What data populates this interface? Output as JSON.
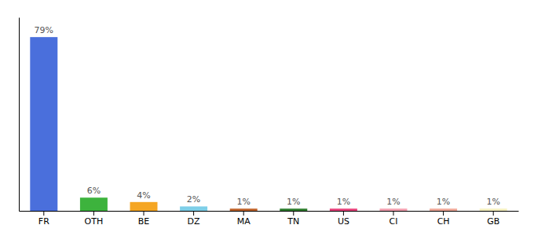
{
  "chart_data": {
    "type": "bar",
    "categories": [
      "FR",
      "OTH",
      "BE",
      "DZ",
      "MA",
      "TN",
      "US",
      "CI",
      "CH",
      "GB"
    ],
    "values": [
      79,
      6,
      4,
      2,
      1,
      1,
      1,
      1,
      1,
      1
    ],
    "colors": [
      "#4a6fdc",
      "#3db33d",
      "#f5a623",
      "#7ecfe8",
      "#c0622a",
      "#2d7d2d",
      "#e8417a",
      "#f4a0b0",
      "#f0a898",
      "#f5f0c0"
    ],
    "data_labels": true,
    "value_labels": [
      "79%",
      "6%",
      "4%",
      "2%",
      "1%",
      "1%",
      "1%",
      "1%",
      "1%",
      "1%"
    ],
    "ylim": [
      0,
      88
    ],
    "tick_labels": "x",
    "grid": false
  }
}
